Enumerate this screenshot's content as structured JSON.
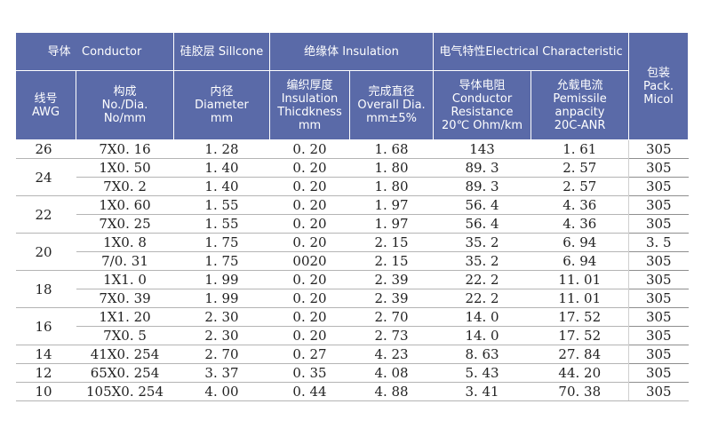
{
  "header": {
    "conductor": "导体   Conductor",
    "silicone": "硅胶层 Sillcone",
    "insulation": "绝缘体 Insulation",
    "electrical": "电气特性Electrical Characteristic",
    "pack": [
      "包装",
      "Pack.",
      "Micol"
    ],
    "awg": [
      "线号",
      "AWG"
    ],
    "construction": [
      "构成",
      "No./Dia.",
      "No/mm"
    ],
    "diameter": [
      "内径",
      "Diameter",
      "mm"
    ],
    "thickness": [
      "编织厚度",
      "Insulation",
      "Thicdkness",
      "mm"
    ],
    "overall": [
      "完成直径",
      "Overall Dia.",
      "mm±5%"
    ],
    "resistance": [
      "导体电阻",
      "Conductor",
      "Resistance",
      "20℃ Ohm/km"
    ],
    "ampacity": [
      "允载电流",
      "Pemissile",
      "anpacity",
      "20C-ANR"
    ]
  },
  "groups": [
    {
      "awg": "26",
      "rows": [
        {
          "construction": "7X0. 16",
          "diameter": "1. 28",
          "thickness": "0. 20",
          "overall": "1. 68",
          "resistance": "143",
          "ampacity": "1. 61",
          "pack": "305"
        }
      ]
    },
    {
      "awg": "24",
      "rows": [
        {
          "construction": "1X0. 50",
          "diameter": "1. 40",
          "thickness": "0. 20",
          "overall": "1. 80",
          "resistance": "89. 3",
          "ampacity": "2. 57",
          "pack": "305"
        },
        {
          "construction": "7X0. 2",
          "diameter": "1. 40",
          "thickness": "0. 20",
          "overall": "1. 80",
          "resistance": "89. 3",
          "ampacity": "2. 57",
          "pack": "305"
        }
      ]
    },
    {
      "awg": "22",
      "rows": [
        {
          "construction": "1X0. 60",
          "diameter": "1. 55",
          "thickness": "0. 20",
          "overall": "1. 97",
          "resistance": "56. 4",
          "ampacity": "4. 36",
          "pack": "305"
        },
        {
          "construction": "7X0. 25",
          "diameter": "1. 55",
          "thickness": "0. 20",
          "overall": "1. 97",
          "resistance": "56. 4",
          "ampacity": "4. 36",
          "pack": "305"
        }
      ]
    },
    {
      "awg": "20",
      "rows": [
        {
          "construction": "1X0. 8",
          "diameter": "1. 75",
          "thickness": "0. 20",
          "overall": "2. 15",
          "resistance": "35. 2",
          "ampacity": "6. 94",
          "pack": "3. 5"
        },
        {
          "construction": "7/0. 31",
          "diameter": "1. 75",
          "thickness": "0020",
          "overall": "2. 15",
          "resistance": "35. 2",
          "ampacity": "6. 94",
          "pack": "305"
        }
      ]
    },
    {
      "awg": "18",
      "rows": [
        {
          "construction": "1X1. 0",
          "diameter": "1. 99",
          "thickness": "0. 20",
          "overall": "2. 39",
          "resistance": "22. 2",
          "ampacity": "11. 01",
          "pack": "305"
        },
        {
          "construction": "7X0. 39",
          "diameter": "1. 99",
          "thickness": "0. 20",
          "overall": "2. 39",
          "resistance": "22. 2",
          "ampacity": "11. 01",
          "pack": "305"
        }
      ]
    },
    {
      "awg": "16",
      "rows": [
        {
          "construction": "1X1. 20",
          "diameter": "2. 30",
          "thickness": "0. 20",
          "overall": "2. 70",
          "resistance": "14. 0",
          "ampacity": "17. 52",
          "pack": "305"
        },
        {
          "construction": "7X0. 5",
          "diameter": "2. 30",
          "thickness": "0. 20",
          "overall": "2. 73",
          "resistance": "14. 0",
          "ampacity": "17. 52",
          "pack": "305"
        }
      ]
    },
    {
      "awg": "14",
      "rows": [
        {
          "construction": "41X0. 254",
          "diameter": "2. 70",
          "thickness": "0. 27",
          "overall": "4. 23",
          "resistance": "8. 63",
          "ampacity": "27. 84",
          "pack": "305"
        }
      ]
    },
    {
      "awg": "12",
      "rows": [
        {
          "construction": "65X0. 254",
          "diameter": "3. 37",
          "thickness": "0. 35",
          "overall": "4. 08",
          "resistance": "5. 43",
          "ampacity": "44. 20",
          "pack": "305"
        }
      ]
    },
    {
      "awg": "10",
      "rows": [
        {
          "construction": "105X0. 254",
          "diameter": "4. 00",
          "thickness": "0. 44",
          "overall": "4. 88",
          "resistance": "3. 41",
          "ampacity": "70. 38",
          "pack": "305"
        }
      ]
    }
  ]
}
